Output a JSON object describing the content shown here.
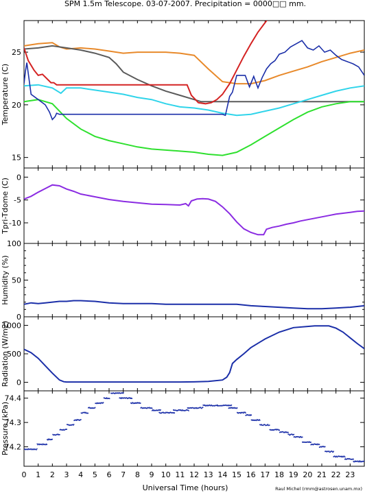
{
  "chart_data": {
    "title": "SPM 1.5m Telescope. 03-07-2007. Precipitation = 0000□□ mm.",
    "xlabel": "Universal Time (hours)",
    "credit": "Raul Michel (rmm@astrosen.unam.mx)",
    "x_ticks": [
      "0",
      "1",
      "2",
      "3",
      "4",
      "5",
      "6",
      "7",
      "8",
      "9",
      "10",
      "11",
      "12",
      "13",
      "14",
      "15",
      "16",
      "17",
      "18",
      "19",
      "20",
      "21",
      "22",
      "23"
    ],
    "xlim": [
      0,
      24
    ],
    "panels": [
      {
        "type": "line",
        "ylabel": "Temperature (C)",
        "ylim": [
          14,
          28
        ],
        "y_ticks": [
          15,
          20,
          25
        ],
        "series": [
          {
            "color": "#e8892a",
            "x": [
              0,
              1,
              2,
              2.5,
              3,
              4,
              5,
              6,
              7,
              8,
              9,
              10,
              11,
              12,
              13,
              14,
              15,
              16,
              17,
              18,
              19,
              20,
              21,
              22,
              23,
              24
            ],
            "y": [
              25.6,
              25.8,
              25.9,
              25.5,
              25.3,
              25.4,
              25.3,
              25.1,
              24.9,
              25.0,
              25.0,
              25.0,
              24.9,
              24.7,
              23.4,
              22.2,
              22.0,
              22.0,
              22.3,
              22.8,
              23.2,
              23.6,
              24.1,
              24.5,
              24.9,
              25.2
            ]
          },
          {
            "color": "#5a5a5a",
            "x": [
              0,
              1,
              2,
              3,
              4,
              5,
              6,
              6.5,
              7,
              8,
              9,
              10,
              11,
              12,
              12.5,
              13,
              14,
              15,
              16,
              17,
              18,
              19,
              20,
              21,
              22,
              23,
              24
            ],
            "y": [
              25.3,
              25.4,
              25.6,
              25.4,
              25.2,
              24.9,
              24.5,
              23.9,
              23.1,
              22.4,
              21.8,
              21.3,
              20.9,
              20.5,
              20.3,
              20.3,
              20.3,
              20.3,
              20.3,
              20.3,
              20.3,
              20.3,
              20.3,
              20.3,
              20.3,
              20.3,
              20.3
            ]
          },
          {
            "color": "#2fd4ea",
            "x": [
              0,
              1,
              2,
              2.6,
              3,
              4,
              5,
              6,
              7,
              8,
              9,
              10,
              11,
              12,
              13,
              14,
              15,
              16,
              17,
              18,
              19,
              20,
              21,
              22,
              23,
              24
            ],
            "y": [
              21.8,
              21.9,
              21.6,
              21.1,
              21.6,
              21.6,
              21.4,
              21.2,
              21.0,
              20.7,
              20.5,
              20.1,
              19.8,
              19.7,
              19.5,
              19.2,
              19.0,
              19.1,
              19.4,
              19.7,
              20.1,
              20.5,
              20.9,
              21.3,
              21.6,
              21.8
            ]
          },
          {
            "color": "#2ee02e",
            "x": [
              0,
              1,
              2,
              3,
              4,
              5,
              6,
              7,
              8,
              9,
              10,
              11,
              12,
              13,
              14,
              15,
              16,
              17,
              18,
              19,
              20,
              21,
              22,
              23,
              24
            ],
            "y": [
              20.3,
              20.5,
              20.1,
              18.7,
              17.7,
              17.0,
              16.6,
              16.3,
              16.0,
              15.8,
              15.7,
              15.6,
              15.5,
              15.3,
              15.2,
              15.5,
              16.2,
              17.0,
              17.8,
              18.6,
              19.3,
              19.8,
              20.1,
              20.3,
              20.3
            ]
          },
          {
            "color": "#d42222",
            "x": [
              0,
              0.3,
              0.7,
              1.0,
              1.3,
              1.6,
              1.9,
              2.1,
              2.3,
              2.8,
              4,
              6,
              8,
              10,
              11.5,
              11.8,
              12.3,
              12.8,
              13.2,
              13.6,
              14,
              14.5,
              15,
              15.5,
              16,
              16.5,
              17.0,
              17.4
            ],
            "y": [
              25.4,
              24.2,
              23.3,
              22.8,
              22.9,
              22.5,
              22.1,
              22.1,
              21.9,
              21.9,
              21.9,
              21.9,
              21.9,
              21.9,
              21.9,
              20.9,
              20.2,
              20.1,
              20.2,
              20.5,
              21.0,
              22.0,
              23.3,
              24.6,
              25.8,
              26.9,
              27.8,
              28.5
            ]
          },
          {
            "color": "#1a2ea8",
            "x": [
              0,
              0.1,
              0.2,
              0.35,
              0.5,
              1.0,
              1.5,
              1.8,
              2.0,
              2.2,
              2.3,
              2.5,
              3,
              4,
              5,
              6,
              7,
              8,
              9,
              10,
              11,
              12,
              13,
              14,
              14.2,
              14.5,
              14.7,
              15.0,
              15.3,
              15.6,
              15.9,
              16.2,
              16.5,
              16.8,
              17.1,
              17.4,
              17.7,
              18.0,
              18.4,
              18.8,
              19.2,
              19.6,
              20.0,
              20.4,
              20.8,
              21.2,
              21.6,
              22.0,
              22.4,
              22.8,
              23.2,
              23.6,
              24.0
            ],
            "y": [
              22.0,
              23.2,
              24.0,
              22.5,
              21.0,
              20.5,
              20.0,
              19.3,
              18.6,
              18.9,
              19.2,
              19.1,
              19.1,
              19.1,
              19.1,
              19.1,
              19.1,
              19.1,
              19.1,
              19.1,
              19.1,
              19.1,
              19.1,
              19.1,
              19.0,
              20.8,
              21.2,
              22.8,
              22.8,
              22.8,
              21.7,
              22.7,
              21.6,
              22.6,
              23.4,
              23.9,
              24.2,
              24.8,
              25.0,
              25.5,
              25.8,
              26.1,
              25.4,
              25.2,
              25.6,
              25.0,
              25.2,
              24.7,
              24.3,
              24.1,
              23.9,
              23.6,
              22.8
            ]
          }
        ]
      },
      {
        "type": "line",
        "ylabel": "Tpri-Tdome (C)",
        "ylim": [
          -14.5,
          2
        ],
        "y_ticks": [
          -10,
          -5,
          0
        ],
        "series": [
          {
            "color": "#8a2be2",
            "x": [
              0,
              0.5,
              1.0,
              1.5,
              2.0,
              2.5,
              3,
              3.5,
              4,
              5,
              6,
              7,
              8,
              9,
              10,
              11,
              11.4,
              11.6,
              11.8,
              12.2,
              12.6,
              13,
              13.5,
              14,
              14.5,
              15,
              15.5,
              16,
              16.5,
              16.9,
              17.1,
              17.5,
              18,
              18.5,
              19,
              19.5,
              20,
              20.5,
              21,
              21.5,
              22,
              22.5,
              23,
              23.5,
              24
            ],
            "y": [
              -4.8,
              -4.2,
              -3.3,
              -2.5,
              -1.7,
              -1.9,
              -2.6,
              -3.1,
              -3.7,
              -4.3,
              -4.9,
              -5.3,
              -5.6,
              -5.9,
              -6.0,
              -6.1,
              -5.8,
              -6.3,
              -5.2,
              -4.8,
              -4.7,
              -4.8,
              -5.3,
              -6.5,
              -8.0,
              -9.8,
              -11.3,
              -12.1,
              -12.6,
              -12.6,
              -11.4,
              -11.0,
              -10.7,
              -10.3,
              -10.0,
              -9.6,
              -9.3,
              -9.0,
              -8.7,
              -8.4,
              -8.1,
              -7.9,
              -7.7,
              -7.5,
              -7.4
            ]
          }
        ]
      },
      {
        "type": "line",
        "ylabel": "Humidity (%)",
        "ylim": [
          0,
          100
        ],
        "y_ticks": [
          0,
          10,
          20,
          30,
          40,
          50,
          60,
          70,
          80,
          90,
          100
        ],
        "y_tick_labels": [
          0,
          50,
          100
        ],
        "series": [
          {
            "color": "#1a2ea8",
            "x": [
              0,
              0.5,
              1,
              1.5,
              2,
              2.5,
              3,
              3.5,
              4,
              5,
              6,
              7,
              8,
              9,
              10,
              11,
              12,
              13,
              14,
              15,
              16,
              17,
              18,
              19,
              20,
              21,
              22,
              23,
              24
            ],
            "y": [
              17,
              19,
              18,
              19,
              20,
              21,
              21,
              22,
              22,
              21,
              19,
              18,
              18,
              18,
              17,
              17,
              17,
              17,
              17,
              17,
              15,
              14,
              13,
              12,
              11,
              11,
              12,
              13,
              15
            ]
          }
        ]
      },
      {
        "type": "line",
        "ylabel": "Radiation (W/m2)",
        "ylim": [
          -150,
          1150
        ],
        "y_ticks": [
          0,
          500,
          1000
        ],
        "series": [
          {
            "color": "#1a2ea8",
            "x": [
              0,
              0.5,
              1,
              1.5,
              2,
              2.5,
              2.8,
              3,
              4,
              5,
              6,
              7,
              8,
              9,
              10,
              11,
              12,
              13,
              14,
              14.3,
              14.5,
              14.7,
              15,
              15.5,
              16,
              17,
              18,
              19,
              20,
              20.5,
              21,
              21.5,
              22,
              22.5,
              23,
              23.5,
              24
            ],
            "y": [
              580,
              520,
              420,
              290,
              160,
              40,
              10,
              5,
              5,
              5,
              5,
              5,
              5,
              5,
              5,
              5,
              8,
              15,
              40,
              90,
              170,
              330,
              400,
              500,
              610,
              760,
              880,
              960,
              980,
              990,
              990,
              990,
              950,
              880,
              780,
              680,
              590
            ]
          }
        ]
      },
      {
        "type": "scatter",
        "ylabel": "Pressure (kPa)",
        "ylim": [
          74.12,
          74.43
        ],
        "y_ticks": [
          74.2,
          74.3,
          74.4
        ],
        "y_tick_labels": [
          74.2,
          74.3,
          74.4
        ],
        "series": [
          {
            "color": "#1a2ea8",
            "segments": [
              [
                0.0,
                0.9,
                74.19
              ],
              [
                0.9,
                1.6,
                74.21
              ],
              [
                1.6,
                2.0,
                74.23
              ],
              [
                2.0,
                2.5,
                74.25
              ],
              [
                2.5,
                3.0,
                74.27
              ],
              [
                3.0,
                3.5,
                74.29
              ],
              [
                3.5,
                4.0,
                74.31
              ],
              [
                4.0,
                4.5,
                74.34
              ],
              [
                4.5,
                5.0,
                74.36
              ],
              [
                5.0,
                5.6,
                74.38
              ],
              [
                5.6,
                6.0,
                74.4
              ],
              [
                6.1,
                7.0,
                74.42
              ],
              [
                6.7,
                7.6,
                74.4
              ],
              [
                7.5,
                8.2,
                74.38
              ],
              [
                8.2,
                9.0,
                74.36
              ],
              [
                9.0,
                9.6,
                74.35
              ],
              [
                9.5,
                10.6,
                74.34
              ],
              [
                10.5,
                11.6,
                74.35
              ],
              [
                11.5,
                12.6,
                74.36
              ],
              [
                12.6,
                13.6,
                74.37
              ],
              [
                13.6,
                14.6,
                74.37
              ],
              [
                14.4,
                15.0,
                74.36
              ],
              [
                15.0,
                15.6,
                74.34
              ],
              [
                15.6,
                16.0,
                74.33
              ],
              [
                16.0,
                16.6,
                74.31
              ],
              [
                16.6,
                17.3,
                74.29
              ],
              [
                17.3,
                18.0,
                74.27
              ],
              [
                18.0,
                18.6,
                74.26
              ],
              [
                18.6,
                19.0,
                74.25
              ],
              [
                19.0,
                19.6,
                74.24
              ],
              [
                19.6,
                20.2,
                74.22
              ],
              [
                20.2,
                20.8,
                74.21
              ],
              [
                20.8,
                21.2,
                74.2
              ],
              [
                21.2,
                21.8,
                74.18
              ],
              [
                21.8,
                22.6,
                74.16
              ],
              [
                22.6,
                23.2,
                74.15
              ],
              [
                23.2,
                24.0,
                74.14
              ]
            ]
          }
        ]
      }
    ]
  }
}
